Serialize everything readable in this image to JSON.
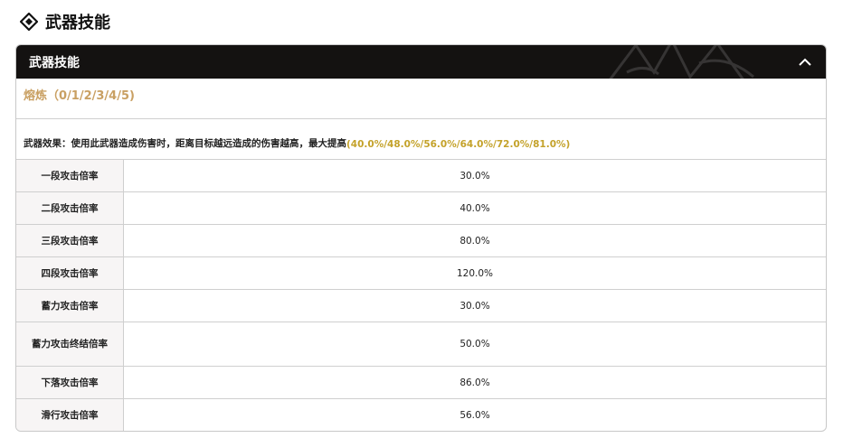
{
  "page_title": "武器技能",
  "panel": {
    "header": "武器技能",
    "refine": "熔炼（0/1/2/3/4/5)",
    "effect_prefix": "武器效果：使用此武器造成伤害时，距离目标越远造成的伤害越高，最大提高",
    "effect_values": "(40.0%/48.0%/56.0%/64.0%/72.0%/81.0%)",
    "accent_gold": "#c9a063",
    "rows": [
      {
        "label": "一段攻击倍率",
        "value": "30.0%"
      },
      {
        "label": "二段攻击倍率",
        "value": "40.0%"
      },
      {
        "label": "三段攻击倍率",
        "value": "80.0%"
      },
      {
        "label": "四段攻击倍率",
        "value": "120.0%"
      },
      {
        "label": "蓄力攻击倍率",
        "value": "30.0%"
      },
      {
        "label": "蓄力攻击终结倍率",
        "value": "50.0%"
      },
      {
        "label": "下落攻击倍率",
        "value": "86.0%"
      },
      {
        "label": "滑行攻击倍率",
        "value": "56.0%"
      }
    ]
  }
}
